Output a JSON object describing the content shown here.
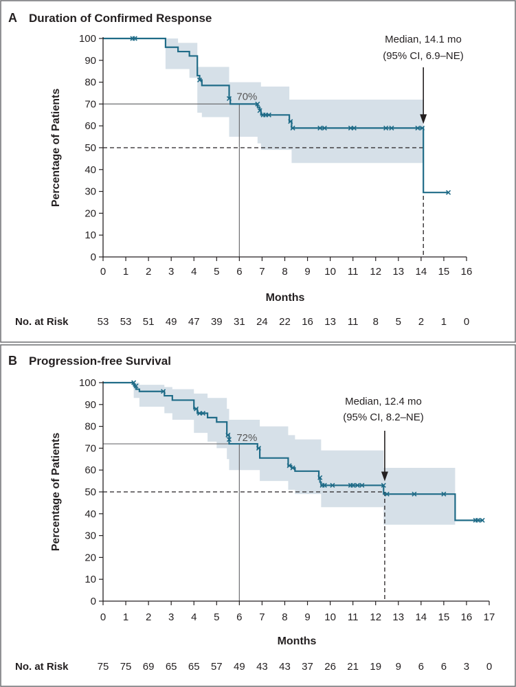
{
  "colors": {
    "line": "#1f6b87",
    "ci_band": "#d6e0e8",
    "frame": "#6d6e71",
    "text": "#231f20"
  },
  "chart_data": [
    {
      "type": "line",
      "panel_letter": "A",
      "title": "Duration of Confirmed Response",
      "xlabel": "Months",
      "ylabel": "Percentage of Patients",
      "xlim": [
        0,
        16
      ],
      "ylim": [
        0,
        100
      ],
      "x_ticks": [
        "0",
        "1",
        "2",
        "3",
        "4",
        "5",
        "6",
        "7",
        "8",
        "9",
        "10",
        "11",
        "12",
        "13",
        "14",
        "15",
        "16"
      ],
      "y_ticks": [
        "0",
        "10",
        "20",
        "30",
        "40",
        "50",
        "60",
        "70",
        "80",
        "90",
        "100"
      ],
      "series": [
        {
          "name": "Kaplan-Meier estimate",
          "steps": [
            [
              0,
              100
            ],
            [
              2.75,
              100
            ],
            [
              2.75,
              96
            ],
            [
              3.3,
              96
            ],
            [
              3.3,
              94
            ],
            [
              3.8,
              94
            ],
            [
              3.8,
              92
            ],
            [
              4.15,
              92
            ],
            [
              4.15,
              83
            ],
            [
              4.25,
              83
            ],
            [
              4.25,
              81
            ],
            [
              4.35,
              81
            ],
            [
              4.35,
              78.5
            ],
            [
              5.55,
              78.5
            ],
            [
              5.55,
              72.5
            ],
            [
              5.6,
              72.5
            ],
            [
              5.6,
              70
            ],
            [
              6.8,
              70
            ],
            [
              6.8,
              68.5
            ],
            [
              6.9,
              68.5
            ],
            [
              6.9,
              67
            ],
            [
              6.95,
              67
            ],
            [
              6.95,
              65
            ],
            [
              8.2,
              65
            ],
            [
              8.2,
              62
            ],
            [
              8.3,
              62
            ],
            [
              8.3,
              59
            ],
            [
              14.1,
              59
            ],
            [
              14.1,
              29.5
            ],
            [
              15.2,
              29.5
            ]
          ],
          "censored": [
            [
              1.3,
              100
            ],
            [
              1.4,
              100
            ],
            [
              4.25,
              81
            ],
            [
              5.55,
              72.5
            ],
            [
              6.8,
              70
            ],
            [
              6.9,
              67
            ],
            [
              7.05,
              65
            ],
            [
              7.15,
              65
            ],
            [
              7.3,
              65
            ],
            [
              8.25,
              62
            ],
            [
              8.35,
              59
            ],
            [
              9.55,
              59
            ],
            [
              9.75,
              59
            ],
            [
              10.9,
              59
            ],
            [
              11.05,
              59
            ],
            [
              12.45,
              59
            ],
            [
              12.7,
              59
            ],
            [
              13.85,
              59
            ],
            [
              14.05,
              59
            ],
            [
              15.2,
              29.5
            ]
          ]
        }
      ],
      "ci_band": {
        "upper": [
          [
            0,
            100
          ],
          [
            2.75,
            100
          ],
          [
            2.75,
            100
          ],
          [
            3.3,
            100
          ],
          [
            3.3,
            98
          ],
          [
            4.15,
            98
          ],
          [
            4.15,
            87
          ],
          [
            5.55,
            87
          ],
          [
            5.55,
            80
          ],
          [
            6.95,
            80
          ],
          [
            6.95,
            78
          ],
          [
            8.2,
            78
          ],
          [
            8.2,
            72
          ],
          [
            14.1,
            72
          ]
        ],
        "lower": [
          [
            0,
            100
          ],
          [
            2.75,
            100
          ],
          [
            2.75,
            86
          ],
          [
            3.8,
            86
          ],
          [
            3.8,
            82
          ],
          [
            4.15,
            82
          ],
          [
            4.15,
            66
          ],
          [
            4.35,
            66
          ],
          [
            4.35,
            64
          ],
          [
            5.55,
            64
          ],
          [
            5.55,
            55
          ],
          [
            6.8,
            55
          ],
          [
            6.8,
            52
          ],
          [
            6.95,
            52
          ],
          [
            6.95,
            49
          ],
          [
            8.3,
            49
          ],
          [
            8.3,
            43
          ],
          [
            14.1,
            43
          ]
        ]
      },
      "reference": {
        "x": 6,
        "y": 70,
        "label": "70%"
      },
      "median": {
        "x": 14.1,
        "y": 50,
        "line1": "Median, 14.1 mo",
        "line2": "(95% CI, 6.9–NE)"
      },
      "risk": {
        "title": "No. at Risk",
        "values": [
          "53",
          "53",
          "51",
          "49",
          "47",
          "39",
          "31",
          "24",
          "22",
          "16",
          "13",
          "11",
          "8",
          "5",
          "2",
          "1",
          "0"
        ]
      }
    },
    {
      "type": "line",
      "panel_letter": "B",
      "title": "Progression-free Survival",
      "xlabel": "Months",
      "ylabel": "Percentage of Patients",
      "xlim": [
        0,
        17
      ],
      "ylim": [
        0,
        100
      ],
      "x_ticks": [
        "0",
        "1",
        "2",
        "3",
        "4",
        "5",
        "6",
        "7",
        "8",
        "9",
        "10",
        "11",
        "12",
        "13",
        "14",
        "15",
        "16",
        "17"
      ],
      "y_ticks": [
        "0",
        "10",
        "20",
        "30",
        "40",
        "50",
        "60",
        "70",
        "80",
        "90",
        "100"
      ],
      "series": [
        {
          "name": "Kaplan-Meier estimate",
          "steps": [
            [
              0,
              100
            ],
            [
              1.35,
              100
            ],
            [
              1.35,
              98.5
            ],
            [
              1.45,
              98.5
            ],
            [
              1.45,
              97
            ],
            [
              1.6,
              97
            ],
            [
              1.6,
              96
            ],
            [
              2.7,
              96
            ],
            [
              2.7,
              94
            ],
            [
              3.05,
              94
            ],
            [
              3.05,
              92
            ],
            [
              4.0,
              92
            ],
            [
              4.0,
              88
            ],
            [
              4.15,
              88
            ],
            [
              4.15,
              86
            ],
            [
              4.6,
              86
            ],
            [
              4.6,
              84
            ],
            [
              5.0,
              84
            ],
            [
              5.0,
              82
            ],
            [
              5.45,
              82
            ],
            [
              5.45,
              76
            ],
            [
              5.55,
              76
            ],
            [
              5.55,
              72
            ],
            [
              6.8,
              72
            ],
            [
              6.8,
              70
            ],
            [
              6.9,
              70
            ],
            [
              6.9,
              65.5
            ],
            [
              8.15,
              65.5
            ],
            [
              8.15,
              62
            ],
            [
              8.3,
              62
            ],
            [
              8.3,
              61
            ],
            [
              8.45,
              61
            ],
            [
              8.45,
              59.5
            ],
            [
              9.5,
              59.5
            ],
            [
              9.5,
              56.5
            ],
            [
              9.55,
              56.5
            ],
            [
              9.55,
              54.5
            ],
            [
              9.6,
              54.5
            ],
            [
              9.6,
              53
            ],
            [
              12.35,
              53
            ],
            [
              12.35,
              49
            ],
            [
              15.5,
              49
            ],
            [
              15.5,
              37
            ],
            [
              16.75,
              37
            ]
          ],
          "censored": [
            [
              1.35,
              100
            ],
            [
              1.45,
              98.5
            ],
            [
              2.65,
              96
            ],
            [
              4.1,
              88
            ],
            [
              4.25,
              86
            ],
            [
              4.4,
              86
            ],
            [
              5.5,
              76
            ],
            [
              5.55,
              74
            ],
            [
              6.85,
              70
            ],
            [
              8.2,
              62
            ],
            [
              8.35,
              61
            ],
            [
              9.55,
              56.5
            ],
            [
              9.65,
              53
            ],
            [
              9.75,
              53
            ],
            [
              10.1,
              53
            ],
            [
              10.9,
              53
            ],
            [
              11.0,
              53
            ],
            [
              11.2,
              53
            ],
            [
              11.4,
              53
            ],
            [
              12.35,
              53
            ],
            [
              12.5,
              49
            ],
            [
              13.7,
              49
            ],
            [
              15.0,
              49
            ],
            [
              16.4,
              37
            ],
            [
              16.5,
              37
            ],
            [
              16.7,
              37
            ]
          ]
        }
      ],
      "ci_band": {
        "upper": [
          [
            0,
            100
          ],
          [
            1.35,
            100
          ],
          [
            1.6,
            100
          ],
          [
            1.6,
            99
          ],
          [
            2.7,
            99
          ],
          [
            2.7,
            98
          ],
          [
            3.05,
            98
          ],
          [
            3.05,
            97
          ],
          [
            4.0,
            97
          ],
          [
            4.0,
            95
          ],
          [
            4.6,
            95
          ],
          [
            4.6,
            93
          ],
          [
            5.45,
            93
          ],
          [
            5.45,
            88
          ],
          [
            5.55,
            88
          ],
          [
            5.55,
            83
          ],
          [
            6.9,
            83
          ],
          [
            6.9,
            80
          ],
          [
            8.15,
            80
          ],
          [
            8.15,
            76
          ],
          [
            8.45,
            76
          ],
          [
            8.45,
            74
          ],
          [
            9.6,
            74
          ],
          [
            9.6,
            69
          ],
          [
            12.35,
            69
          ],
          [
            12.35,
            61
          ],
          [
            15.5,
            61
          ]
        ],
        "lower": [
          [
            0,
            100
          ],
          [
            1.35,
            100
          ],
          [
            1.35,
            93
          ],
          [
            1.6,
            93
          ],
          [
            1.6,
            89
          ],
          [
            2.7,
            89
          ],
          [
            2.7,
            86
          ],
          [
            3.05,
            86
          ],
          [
            3.05,
            83
          ],
          [
            4.0,
            83
          ],
          [
            4.0,
            77
          ],
          [
            4.6,
            77
          ],
          [
            4.6,
            73
          ],
          [
            5.0,
            73
          ],
          [
            5.0,
            70
          ],
          [
            5.45,
            70
          ],
          [
            5.45,
            65
          ],
          [
            5.55,
            65
          ],
          [
            5.55,
            60
          ],
          [
            6.9,
            60
          ],
          [
            6.9,
            55
          ],
          [
            8.15,
            55
          ],
          [
            8.15,
            51
          ],
          [
            8.45,
            51
          ],
          [
            8.45,
            49
          ],
          [
            9.6,
            49
          ],
          [
            9.6,
            43
          ],
          [
            12.35,
            43
          ],
          [
            12.35,
            35
          ],
          [
            15.5,
            35
          ]
        ]
      },
      "reference": {
        "x": 6,
        "y": 72,
        "label": "72%"
      },
      "median": {
        "x": 12.4,
        "y": 50,
        "line1": "Median, 12.4 mo",
        "line2": "(95% CI, 8.2–NE)"
      },
      "risk": {
        "title": "No. at Risk",
        "values": [
          "75",
          "75",
          "69",
          "65",
          "65",
          "57",
          "49",
          "43",
          "43",
          "37",
          "26",
          "21",
          "19",
          "9",
          "6",
          "6",
          "3",
          "0"
        ]
      }
    }
  ]
}
